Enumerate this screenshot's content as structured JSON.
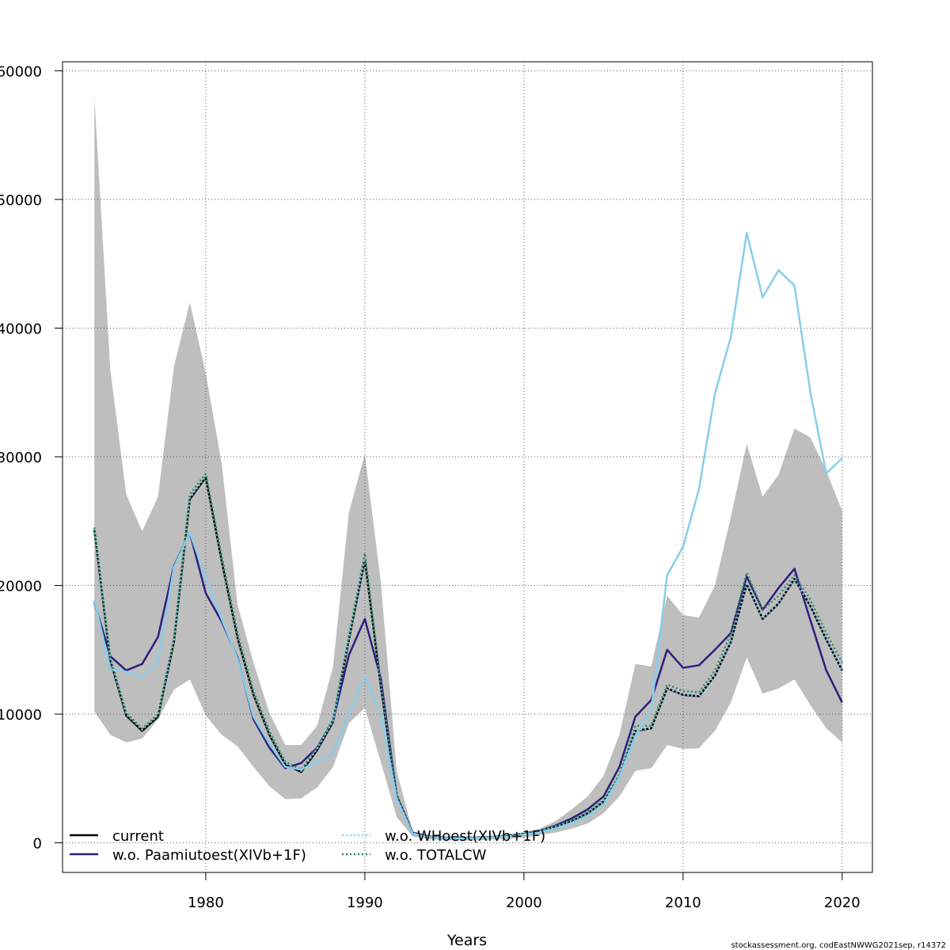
{
  "chart_data": {
    "type": "line",
    "title": "",
    "xlabel": "Years",
    "ylabel": "",
    "xlim": [
      1971.0,
      2021.9
    ],
    "ylim": [
      -2300,
      60700
    ],
    "x_ticks": [
      1980,
      1990,
      2000,
      2010,
      2020
    ],
    "x_tick_labels": [
      "1980",
      "1990",
      "2000",
      "2010",
      "2020"
    ],
    "y_ticks": [
      0,
      10000,
      20000,
      30000,
      40000,
      50000,
      60000
    ],
    "y_tick_labels": [
      "0",
      "10000",
      "20000",
      "30000",
      "40000",
      "50000",
      "60000"
    ],
    "grid": true,
    "legend_position": "bottom-left",
    "x": [
      1973,
      1974,
      1975,
      1976,
      1977,
      1978,
      1979,
      1980,
      1981,
      1982,
      1983,
      1984,
      1985,
      1986,
      1987,
      1988,
      1989,
      1990,
      1991,
      1992,
      1993,
      1994,
      1995,
      1996,
      1997,
      1998,
      1999,
      2000,
      2001,
      2002,
      2003,
      2004,
      2005,
      2006,
      2007,
      2008,
      2009,
      2010,
      2011,
      2012,
      2013,
      2014,
      2015,
      2016,
      2017,
      2018,
      2019,
      2020
    ],
    "confidence_band": {
      "color": "#bebebe",
      "lower": [
        10200,
        8400,
        7800,
        8100,
        9600,
        11900,
        12700,
        9900,
        8400,
        7500,
        5900,
        4400,
        3400,
        3450,
        4300,
        5900,
        9300,
        10500,
        6300,
        2000,
        500,
        300,
        200,
        200,
        200,
        250,
        300,
        400,
        600,
        800,
        1100,
        1500,
        2300,
        3600,
        5600,
        5800,
        7600,
        7300,
        7350,
        8700,
        10900,
        14400,
        11600,
        12000,
        12700,
        10700,
        8900,
        7800
      ],
      "upper": [
        58000,
        36800,
        27100,
        24200,
        26900,
        37000,
        42000,
        36500,
        29500,
        18500,
        14000,
        10100,
        7600,
        7600,
        9100,
        13700,
        25700,
        30200,
        20300,
        5600,
        900,
        600,
        500,
        500,
        500,
        500,
        600,
        800,
        1100,
        1700,
        2600,
        3600,
        5200,
        8400,
        13900,
        13700,
        19200,
        17700,
        17500,
        20000,
        25300,
        31000,
        26900,
        28600,
        32200,
        31500,
        28900,
        25800
      ]
    },
    "series": [
      {
        "name": "current",
        "color": "#000000",
        "dash": "",
        "width": 2.5,
        "values": [
          24300,
          14200,
          9900,
          8700,
          9800,
          15600,
          26700,
          28400,
          21900,
          15900,
          11500,
          8400,
          6100,
          5500,
          7200,
          9400,
          15800,
          22000,
          12200,
          3500,
          700,
          450,
          350,
          350,
          400,
          450,
          550,
          700,
          900,
          1250,
          1700,
          2300,
          3200,
          5100,
          8700,
          8900,
          12000,
          11500,
          11400,
          13000,
          15600,
          20100,
          17400,
          18600,
          20500,
          18400,
          15800,
          13400
        ]
      },
      {
        "name": "w.o. Paamiutoest(XIVb+1F)",
        "color": "#2e1f7e",
        "dash": "",
        "width": 2.5,
        "values": [
          18700,
          14500,
          13400,
          13900,
          16000,
          21500,
          24100,
          19400,
          17200,
          14400,
          9600,
          7400,
          5800,
          6200,
          7400,
          9500,
          14600,
          17400,
          12800,
          3700,
          800,
          500,
          400,
          400,
          400,
          450,
          550,
          700,
          950,
          1350,
          1900,
          2600,
          3600,
          5900,
          9800,
          11100,
          15000,
          13600,
          13800,
          15000,
          16300,
          20700,
          18100,
          19800,
          21300,
          17300,
          13400,
          10900
        ]
      },
      {
        "name": "w.o. WHoest(XIVb+1F)",
        "color": "#87cefa",
        "dash": "2,3",
        "width": 2.5,
        "values": [
          24400,
          14300,
          10000,
          8800,
          9900,
          15700,
          26800,
          28500,
          22000,
          16000,
          11600,
          8500,
          6200,
          5600,
          7300,
          9500,
          15900,
          22100,
          12300,
          3600,
          750,
          480,
          370,
          370,
          420,
          470,
          570,
          720,
          920,
          1270,
          1720,
          2320,
          3220,
          5120,
          8720,
          8920,
          12020,
          11520,
          11420,
          13020,
          15620,
          20120,
          17420,
          18620,
          20520,
          18420,
          15820,
          13420
        ]
      },
      {
        "name": "w.o. TOTALCW",
        "color": "#2e8b57",
        "dash": "2,3",
        "width": 2.5,
        "values": [
          24500,
          14400,
          10100,
          8900,
          10000,
          15900,
          27100,
          28700,
          22300,
          16300,
          11800,
          8700,
          6300,
          5700,
          7400,
          9600,
          16100,
          22500,
          12500,
          3700,
          780,
          500,
          390,
          390,
          440,
          490,
          590,
          740,
          950,
          1300,
          1760,
          2380,
          3300,
          5300,
          9100,
          9100,
          12300,
          11800,
          11700,
          13400,
          16200,
          21000,
          18100,
          19200,
          20800,
          18900,
          16300,
          14000
        ]
      },
      {
        "name": "",
        "color": "#87ceeb",
        "dash": "",
        "width": 2.5,
        "values": [
          18900,
          13500,
          13300,
          12900,
          14100,
          21400,
          24100,
          20600,
          17400,
          14300,
          9800,
          7700,
          5900,
          5700,
          6300,
          6900,
          10000,
          12900,
          10100,
          3400,
          700,
          450,
          350,
          350,
          380,
          420,
          480,
          620,
          820,
          1120,
          1550,
          2100,
          2950,
          5100,
          8300,
          10300,
          20800,
          23000,
          27500,
          34900,
          39300,
          47400,
          42400,
          44500,
          43300,
          35000,
          28700,
          29900
        ]
      }
    ]
  },
  "source_note": "stockassessment.org, codEastNWWG2021sep, r14372"
}
